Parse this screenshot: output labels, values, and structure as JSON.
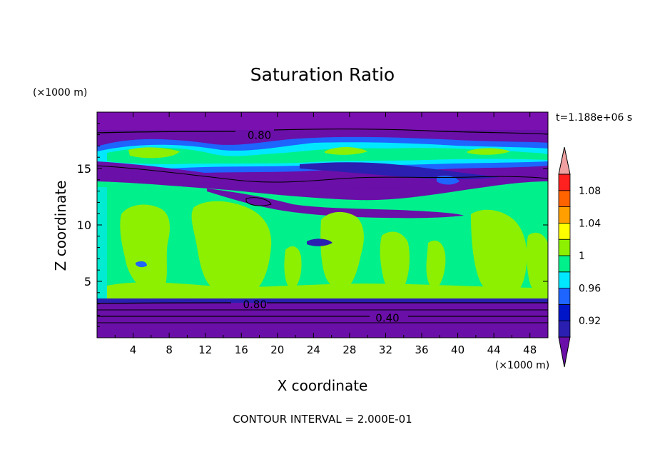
{
  "chart_data": {
    "type": "heatmap",
    "title": "Saturation Ratio",
    "time_label": "t=1.188e+06 s",
    "xlabel": "X coordinate",
    "ylabel": "Z coordinate",
    "x_unit": "(×1000 m)",
    "z_unit": "(×1000 m)",
    "footer": "CONTOUR INTERVAL = 2.000E-01",
    "xlim": [
      0,
      50
    ],
    "zlim": [
      0,
      20
    ],
    "x_ticks": [
      "4",
      "8",
      "12",
      "16",
      "20",
      "24",
      "28",
      "32",
      "36",
      "40",
      "44",
      "48"
    ],
    "z_ticks": [
      "5",
      "10",
      "15"
    ],
    "colorbar": {
      "levels": [
        0.9,
        0.92,
        0.94,
        0.96,
        0.98,
        1.0,
        1.02,
        1.04,
        1.06,
        1.08,
        1.1
      ],
      "labels": [
        "0.92",
        "0.96",
        "1",
        "1.04",
        "1.08"
      ],
      "colors": [
        "#6a0fa8",
        "#2a1fb0",
        "#0014c8",
        "#1e64ff",
        "#00e8ff",
        "#00f08c",
        "#8cf000",
        "#ffff00",
        "#ffa000",
        "#ff6400",
        "#ff2020",
        "#f0a0a0"
      ]
    },
    "contour_labels": [
      {
        "x": 18.0,
        "z": 18.0,
        "text": "0.80"
      },
      {
        "x": 17.5,
        "z": 3.0,
        "text": "0.80"
      },
      {
        "x": 32.2,
        "z": 1.8,
        "text": "0.40"
      }
    ]
  }
}
